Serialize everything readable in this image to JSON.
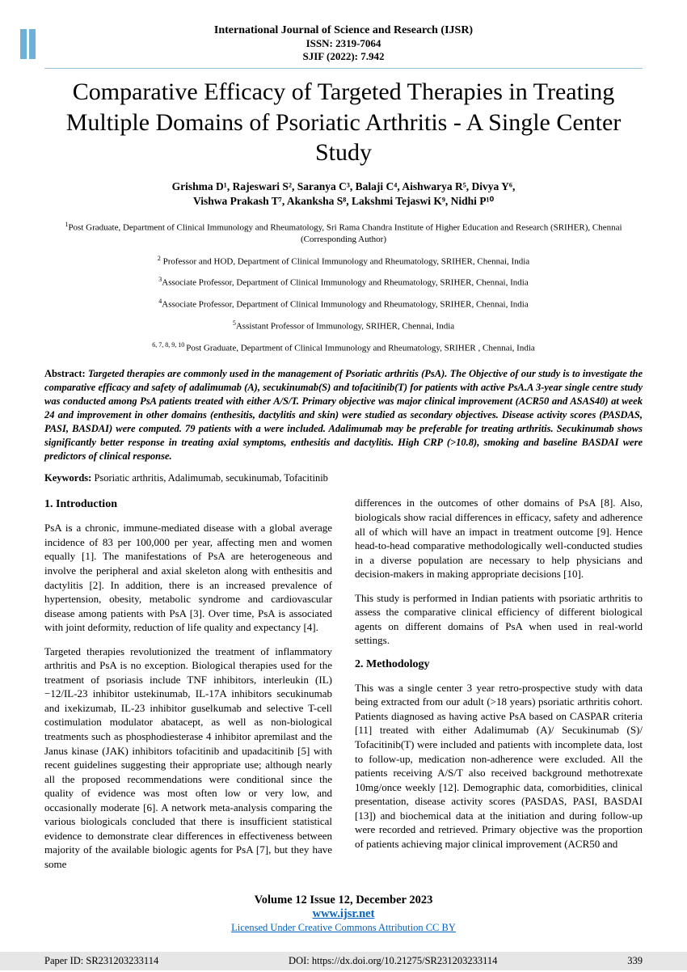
{
  "header": {
    "journal": "International Journal of Science and Research (IJSR)",
    "issn": "ISSN: 2319-7064",
    "sjif": "SJIF (2022): 7.942"
  },
  "title": "Comparative Efficacy of Targeted Therapies in Treating Multiple Domains of Psoriatic Arthritis - A Single Center Study",
  "authors_line1": "Grishma D¹, Rajeswari S², Saranya C³, Balaji C⁴, Aishwarya R⁵, Divya Y⁶,",
  "authors_line2": "Vishwa Prakash T⁷, Akanksha S⁸, Lakshmi Tejaswi K⁹, Nidhi P¹⁰",
  "affiliations": [
    {
      "sup": "1",
      "text": "Post Graduate, Department of Clinical Immunology and Rheumatology, Sri Rama Chandra Institute of Higher Education and Research (SRIHER), Chennai (Corresponding Author)"
    },
    {
      "sup": "2",
      "text": " Professor and HOD, Department of Clinical Immunology and Rheumatology, SRIHER, Chennai, India"
    },
    {
      "sup": "3",
      "text": "Associate Professor, Department of Clinical Immunology and Rheumatology, SRIHER, Chennai, India"
    },
    {
      "sup": "4",
      "text": "Associate Professor, Department of Clinical Immunology and Rheumatology, SRIHER, Chennai, India"
    },
    {
      "sup": "5",
      "text": "Assistant Professor of Immunology, SRIHER, Chennai, India"
    },
    {
      "sup": "6, 7, 8, 9, 10 ",
      "text": "Post Graduate, Department of Clinical Immunology and Rheumatology, SRIHER , Chennai, India"
    }
  ],
  "abstract": {
    "label": "Abstract:",
    "text": "Targeted therapies are commonly used in the management of Psoriatic arthritis (PsA). The Objective of our study is to investigate the comparative efficacy and safety of adalimumab (A), secukinumab(S) and tofacitinib(T) for patients with active PsA.A 3-year single centre study was conducted among PsA patients treated with either A/S/T. Primary objective was major clinical improvement (ACR50 and ASAS40) at week 24 and improvement in other domains (enthesitis, dactylitis and skin) were studied as secondary objectives. Disease activity scores (PASDAS, PASI, BASDAI) were computed. 79 patients with a were included. Adalimumab may be preferable for treating arthritis. Secukinumab shows significantly better response in treating axial symptoms, enthesitis and dactylitis. High CRP (>10.8), smoking and baseline BASDAI were predictors of clinical response."
  },
  "keywords": {
    "label": "Keywords:",
    "text": " Psoriatic arthritis, Adalimumab, secukinumab, Tofacitinib"
  },
  "sections": {
    "intro_head": "1.   Introduction",
    "intro_p1": "PsA is a chronic, immune-mediated disease with a global average incidence of 83 per 100,000 per year, affecting men and women equally [1]. The manifestations of PsA are heterogeneous and involve the peripheral and axial skeleton along with enthesitis and dactylitis [2]. In addition, there is an increased prevalence of hypertension, obesity, metabolic syndrome and cardiovascular disease among patients with PsA [3]. Over time, PsA is associated with joint deformity, reduction of life quality and expectancy [4].",
    "intro_p2": "Targeted therapies revolutionized the treatment of inflammatory arthritis and PsA is no exception. Biological therapies used for the treatment of psoriasis include TNF inhibitors, interleukin (IL)−12/IL-23 inhibitor ustekinumab, IL-17A inhibitors secukinumab and ixekizumab, IL-23 inhibitor guselkumab and selective T-cell costimulation modulator abatacept, as well as non-biological treatments such as phosphodiesterase 4 inhibitor apremilast and the Janus kinase (JAK) inhibitors tofacitinib and upadacitinib [5] with recent guidelines suggesting their appropriate use; although nearly all the proposed recommendations were conditional since the quality of evidence was most often low or very low, and occasionally moderate [6]. A network meta-analysis comparing the various biologicals concluded that there is insufficient statistical evidence to demonstrate clear differences in effectiveness between majority of the available biologic agents for PsA [7], but they have some",
    "col2_p1": "differences in the outcomes of other domains of PsA [8]. Also, biologicals show racial differences in efficacy, safety and adherence all of which will have an impact in treatment outcome [9]. Hence head-to-head comparative methodologically well-conducted studies in a diverse population are necessary to help physicians and decision-makers in making appropriate decisions [10].",
    "col2_p2": "This study is performed in Indian patients with psoriatic arthritis to assess the comparative clinical efficiency of different biological agents on different domains of PsA when used in real-world settings.",
    "method_head": "2.   Methodology",
    "method_p1": "This was a single center 3 year retro-prospective study with data being extracted from our adult (>18 years) psoriatic arthritis cohort. Patients diagnosed as having active PsA based on CASPAR criteria [11] treated with either Adalimumab (A)/ Secukinumab (S)/ Tofacitinib(T) were included and patients with incomplete data, lost to follow-up, medication non-adherence were excluded. All the patients receiving A/S/T also received background methotrexate 10mg/once weekly [12]. Demographic data, comorbidities, clinical presentation, disease activity scores (PASDAS, PASI, BASDAI [13]) and biochemical data at the initiation and during follow-up were recorded and retrieved. Primary objective was the proportion of patients achieving major clinical improvement (ACR50 and"
  },
  "footer": {
    "vol": "Volume 12 Issue 12, December 2023",
    "url": "www.ijsr.net",
    "lic": "Licensed Under Creative Commons Attribution CC BY"
  },
  "bottom": {
    "paperid": "Paper ID: SR231203233114",
    "doi": "DOI: https://dx.doi.org/10.21275/SR231203233114",
    "page": "339"
  },
  "colors": {
    "bar": "#6eb0d6",
    "link": "#0563c1",
    "rule": "#96c4e0",
    "bottombg": "#e6e6e6"
  }
}
